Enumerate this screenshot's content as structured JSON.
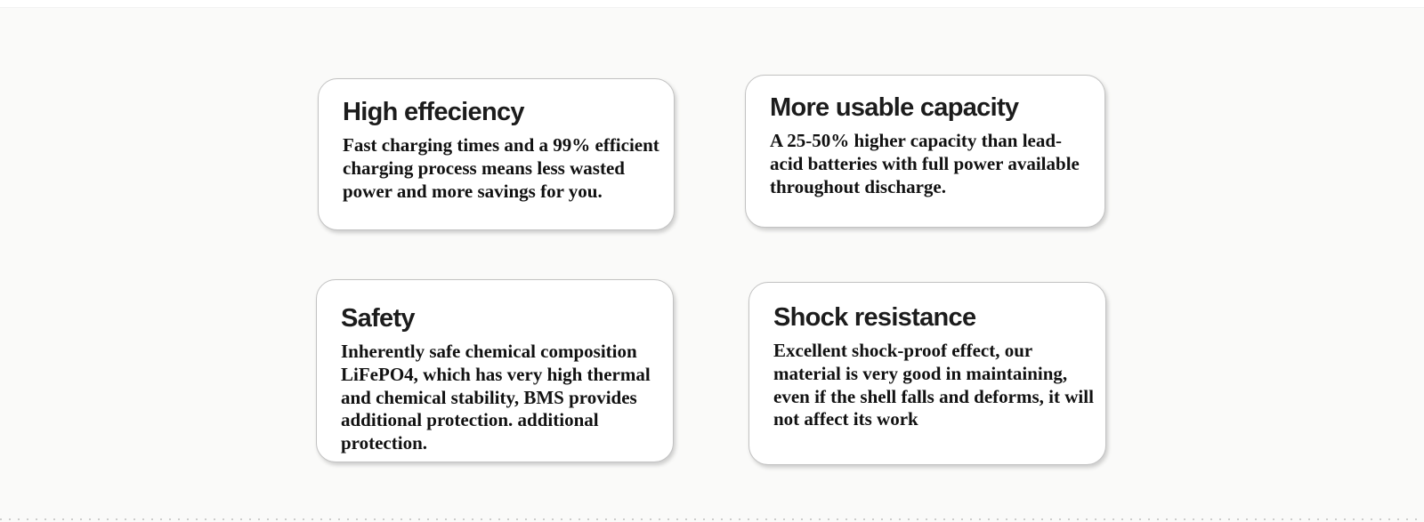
{
  "page": {
    "background_color": "#fafaf9",
    "card_background_color": "#ffffff"
  },
  "cards": [
    {
      "title": "High effeciency",
      "body": "Fast charging times and a 99% efficient\ncharging process means less wasted\npower and more savings for you."
    },
    {
      "title": "More usable capacity",
      "body": "A 25-50% higher capacity than lead-\nacid batteries with full power available\nthroughout discharge."
    },
    {
      "title": "Safety",
      "body": "Inherently safe chemical composition\nLiFePO4, which has very high thermal\nand chemical stability, BMS provides\nadditional protection. additional\nprotection."
    },
    {
      "title": "Shock resistance",
      "body": "Excellent shock-proof effect, our\nmaterial is very good in maintaining,\neven if the shell falls and deforms, it will\nnot affect its work"
    }
  ]
}
